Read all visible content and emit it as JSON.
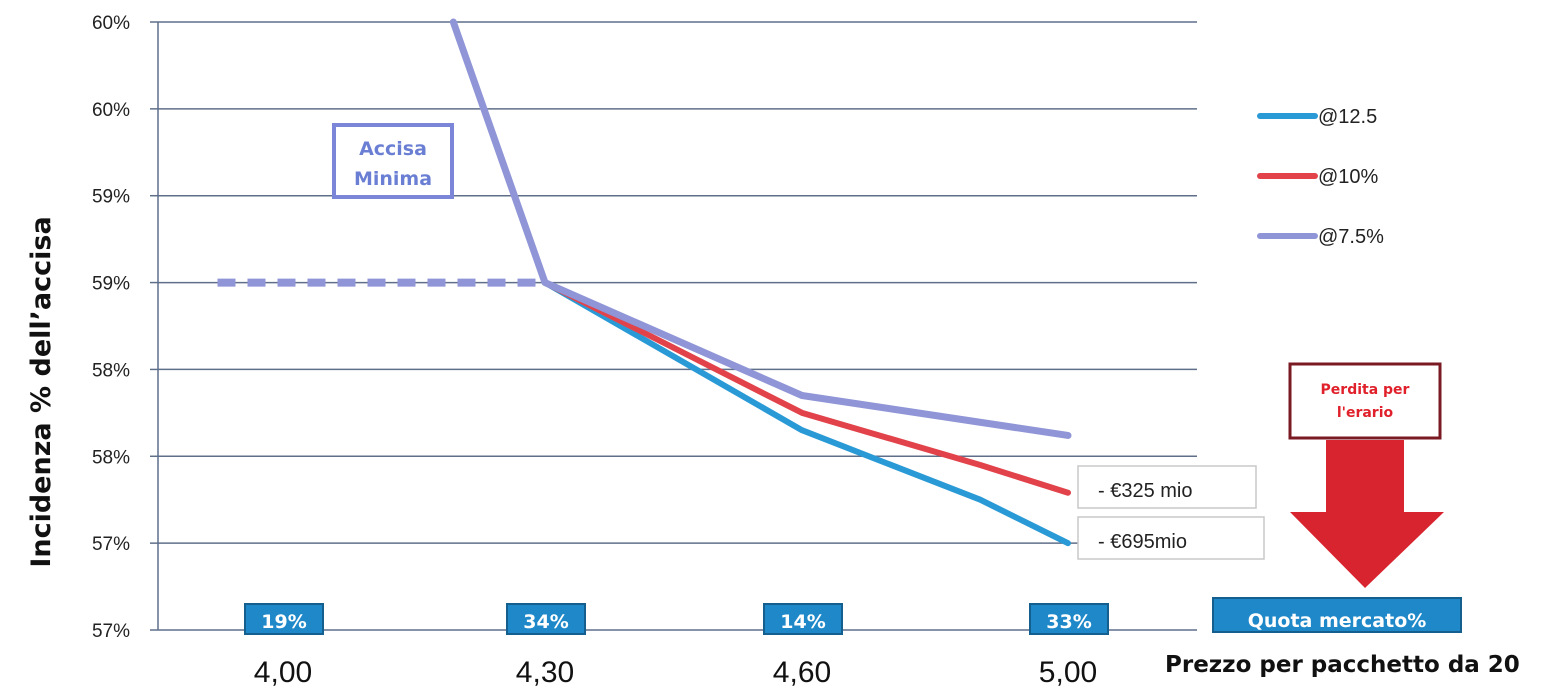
{
  "colors": {
    "series_12_5": "#2a9ad6",
    "series_10": "#e2434a",
    "series_7_5": "#8f95d6",
    "grid": "#5f6f8a",
    "accisa_border": "#7b86d9",
    "share_box": "#1e88c9",
    "perdita_border": "#7a1a22",
    "arrow_red": "#d8242e"
  },
  "chart_data": {
    "type": "line",
    "title": "",
    "ylabel": "Incidenza % dell’accisa",
    "xlabel": "Prezzo per pacchetto da 20",
    "categories": [
      "4,00",
      "4,30",
      "4,60",
      "5,00"
    ],
    "y_tick_labels": [
      "60%",
      "60%",
      "59%",
      "59%",
      "58%",
      "58%",
      "57%",
      "57%"
    ],
    "ylim": [
      56.75,
      60.25
    ],
    "y_tick_values": [
      60.25,
      59.75,
      59.25,
      58.75,
      58.25,
      57.75,
      57.25,
      56.75
    ],
    "grid": true,
    "legend_position": "right",
    "series": [
      {
        "name": "@12.5",
        "color_key": "series_12_5",
        "x": [
          1,
          2,
          2.67,
          3
        ],
        "y": [
          58.75,
          57.9,
          57.5,
          57.25
        ]
      },
      {
        "name": "@10%",
        "color_key": "series_10",
        "x": [
          1,
          2,
          2.67,
          3
        ],
        "y": [
          58.75,
          58.0,
          57.7,
          57.54
        ]
      },
      {
        "name": "@7.5%",
        "color_key": "series_7_5",
        "x": [
          0.65,
          1,
          2,
          3
        ],
        "y": [
          60.25,
          58.75,
          58.1,
          57.87
        ]
      }
    ],
    "minimum_excise_line": {
      "x": [
        -0.25,
        1
      ],
      "y": [
        58.75,
        58.75
      ]
    },
    "market_share": {
      "label": "Quota mercato%",
      "values": [
        "19%",
        "34%",
        "14%",
        "33%"
      ]
    },
    "annotations": {
      "accisa_line1": "Accisa",
      "accisa_line2": "Minima",
      "loss_10": "- €325 mio",
      "loss_12_5": "- €695mio",
      "perdita_line1": "Perdita per",
      "perdita_line2": "l'erario"
    }
  }
}
